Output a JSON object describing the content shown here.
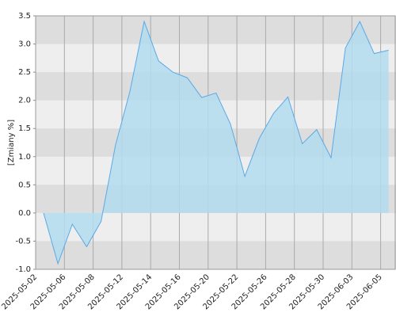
{
  "chart_data": {
    "type": "area",
    "y_label": "[Zmiany %]",
    "categories": [
      "2025-05-02",
      null,
      "2025-05-06",
      null,
      "2025-05-08",
      null,
      "2025-05-12",
      null,
      "2025-05-14",
      null,
      "2025-05-16",
      null,
      "2025-05-20",
      null,
      "2025-05-22",
      null,
      "2025-05-26",
      null,
      "2025-05-28",
      null,
      "2025-05-30",
      null,
      "2025-06-03",
      null,
      "2025-06-05"
    ],
    "values": [
      0,
      -0.9,
      -0.2,
      -0.6,
      -0.15,
      1.2,
      2.15,
      3.4,
      2.7,
      2.5,
      2.4,
      2.05,
      2.13,
      1.58,
      0.65,
      1.32,
      1.77,
      2.06,
      1.23,
      1.48,
      0.98,
      2.93,
      3.4,
      2.83,
      2.89
    ],
    "color": "#5aa9e6",
    "fill": "#b3dcee",
    "ylim": [
      -1.0,
      3.5
    ],
    "yticks": [
      {
        "value": -1,
        "label": "-1.0"
      },
      -0.5,
      {
        "value": 0,
        "label": "0.0"
      },
      0.5,
      {
        "value": 1,
        "label": "1.0"
      },
      1.5,
      {
        "value": 2,
        "label": "2.0"
      },
      2.5,
      {
        "value": 3,
        "label": "3.0"
      },
      3.5
    ],
    "grid": true
  }
}
